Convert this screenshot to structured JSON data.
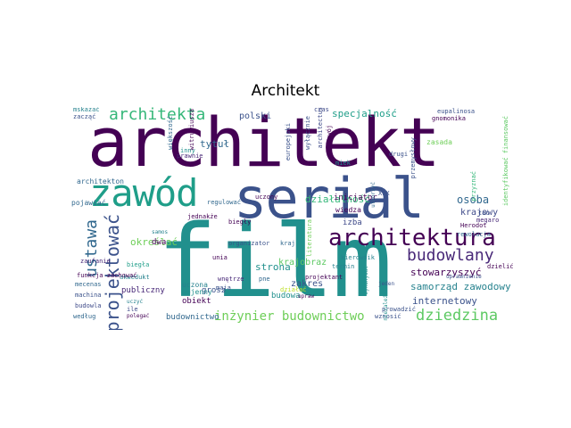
{
  "figure": {
    "title": "Architekt"
  },
  "colors": {
    "c1": "#440154",
    "c2": "#3b528b",
    "c3": "#21908d",
    "c4": "#5dc963",
    "c5": "#bddf26",
    "c6": "#31688e"
  },
  "words": [
    {
      "text": "architekt",
      "color": "#440154"
    },
    {
      "text": "film",
      "color": "#21908d"
    },
    {
      "text": "serial",
      "color": "#3b528b"
    },
    {
      "text": "zawód",
      "color": "#1f9e89"
    },
    {
      "text": "architektura",
      "color": "#440154"
    },
    {
      "text": "architekta",
      "color": "#35b779"
    },
    {
      "text": "projektować",
      "color": "#3b528b"
    },
    {
      "text": "ustawa",
      "color": "#31688e"
    },
    {
      "text": "budowlany",
      "color": "#482878"
    },
    {
      "text": "dziedzina",
      "color": "#5dc963"
    },
    {
      "text": "inżynier budownictwo",
      "color": "#6ece58"
    },
    {
      "text": "samorząd zawodowy",
      "color": "#26828e"
    },
    {
      "text": "stowarzyszyć",
      "color": "#440154"
    },
    {
      "text": "internetowy",
      "color": "#3b528b"
    },
    {
      "text": "osoba",
      "color": "#31688e"
    },
    {
      "text": "krajowy",
      "color": "#3e4a89"
    },
    {
      "text": "specjalność",
      "color": "#1f9e89"
    },
    {
      "text": "działalność",
      "color": "#35b779"
    },
    {
      "text": "polski",
      "color": "#3b528b"
    },
    {
      "text": "tytuł",
      "color": "#31688e"
    },
    {
      "text": "określać",
      "color": "#6ece58"
    },
    {
      "text": "strona",
      "color": "#21908d"
    },
    {
      "text": "krajobraz",
      "color": "#5dc963"
    },
    {
      "text": "zakres",
      "color": "#3b528b"
    },
    {
      "text": "budowa",
      "color": "#21908d"
    },
    {
      "text": "budownictwo",
      "color": "#31688e"
    },
    {
      "text": "publiczny",
      "color": "#482878"
    },
    {
      "text": "obiekt",
      "color": "#440154"
    },
    {
      "text": "grosz",
      "color": "#3b528b"
    },
    {
      "text": "uczona",
      "color": "#26828e"
    },
    {
      "text": "wojenny",
      "color": "#21908d"
    },
    {
      "text": "izba",
      "color": "#3e4a89"
    },
    {
      "text": "wiedza",
      "color": "#440154"
    },
    {
      "text": "architekton",
      "color": "#31688e"
    },
    {
      "text": "inicjator",
      "color": "#440154"
    },
    {
      "text": "pojawiać",
      "color": "#31688e"
    },
    {
      "text": "zaufanie",
      "color": "#482878"
    },
    {
      "text": "akwedukt",
      "color": "#26828e"
    },
    {
      "text": "machina",
      "color": "#3b528b"
    },
    {
      "text": "budowla",
      "color": "#3e4a89"
    },
    {
      "text": "według",
      "color": "#31688e"
    },
    {
      "text": "biegła",
      "color": "#1f9e89"
    },
    {
      "text": "biegły",
      "color": "#440154"
    },
    {
      "text": "dwa",
      "color": "#440154"
    },
    {
      "text": "wnętrze",
      "color": "#482878"
    },
    {
      "text": "maja",
      "color": "#3b528b"
    },
    {
      "text": "organizator",
      "color": "#3b528b"
    },
    {
      "text": "kraj",
      "color": "#31688e"
    },
    {
      "text": "dzielić",
      "color": "#440154"
    },
    {
      "text": "termin",
      "color": "#26828e"
    },
    {
      "text": "Herodot",
      "color": "#440154"
    },
    {
      "text": "rewolucja",
      "color": "#31688e"
    },
    {
      "text": "wznosić",
      "color": "#3b528b"
    },
    {
      "text": "inny",
      "color": "#21908d"
    },
    {
      "text": "prawnie",
      "color": "#482878"
    },
    {
      "text": "zacząć",
      "color": "#3b528b"
    },
    {
      "text": "mskazać",
      "color": "#26828e"
    },
    {
      "text": "literatura",
      "color": "#6ece58"
    },
    {
      "text": "uczony",
      "color": "#440154"
    },
    {
      "text": "regulować",
      "color": "#31688e"
    },
    {
      "text": "gnomonika",
      "color": "#440154"
    },
    {
      "text": "eupalinosa",
      "color": "#3b528b"
    },
    {
      "text": "czas",
      "color": "#3e4a89"
    },
    {
      "text": "drugi",
      "color": "#3b528b"
    },
    {
      "text": "miek",
      "color": "#21908d"
    },
    {
      "text": "swój",
      "color": "#440154"
    },
    {
      "text": "europejski",
      "color": "#3b528b"
    },
    {
      "text": "jednakże",
      "color": "#440154"
    },
    {
      "text": "łac",
      "color": "#3b528b"
    },
    {
      "text": "megaro",
      "color": "#482878"
    },
    {
      "text": "XIX",
      "color": "#3b528b"
    },
    {
      "text": "większość",
      "color": "#31688e"
    },
    {
      "text": "kierownik",
      "color": "#26828e"
    },
    {
      "text": "projektant",
      "color": "#440154"
    },
    {
      "text": "prowadzić",
      "color": "#3b528b"
    },
    {
      "text": "wykonywać",
      "color": "#21908d"
    },
    {
      "text": "upraw",
      "color": "#440154"
    },
    {
      "text": "jeden",
      "color": "#3b528b"
    },
    {
      "text": "mecenas",
      "color": "#31688e"
    },
    {
      "text": "ile",
      "color": "#3e4a89"
    },
    {
      "text": "funkcja zachować",
      "color": "#440154"
    },
    {
      "text": "identyfikować finansować",
      "color": "#5dc963"
    },
    {
      "text": "przyznać",
      "color": "#35b779"
    },
    {
      "text": "przemysłowy",
      "color": "#3b528b"
    },
    {
      "text": "utworzyć",
      "color": "#31688e"
    },
    {
      "text": "witruwiusza",
      "color": "#440154"
    },
    {
      "text": "uczyć",
      "color": "#26828e"
    },
    {
      "text": "uprawnienie",
      "color": "#3b528b"
    },
    {
      "text": "niezależnie",
      "color": "#21908d"
    },
    {
      "text": "samos",
      "color": "#26828e"
    },
    {
      "text": "unia",
      "color": "#440154"
    },
    {
      "text": "wyłącznie",
      "color": "#3b528b"
    },
    {
      "text": "architectus",
      "color": "#3e4a89"
    },
    {
      "text": "zasada",
      "color": "#6ece58"
    },
    {
      "text": "pne",
      "color": "#31688e"
    },
    {
      "text": "polegać",
      "color": "#440154"
    },
    {
      "text": "działać",
      "color": "#bddf26"
    }
  ]
}
